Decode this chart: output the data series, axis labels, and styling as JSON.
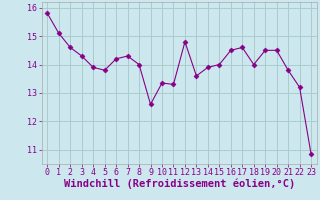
{
  "x": [
    0,
    1,
    2,
    3,
    4,
    5,
    6,
    7,
    8,
    9,
    10,
    11,
    12,
    13,
    14,
    15,
    16,
    17,
    18,
    19,
    20,
    21,
    22,
    23
  ],
  "y": [
    15.8,
    15.1,
    14.6,
    14.3,
    13.9,
    13.8,
    14.2,
    14.3,
    14.0,
    12.6,
    13.35,
    13.3,
    14.8,
    13.6,
    13.9,
    14.0,
    14.5,
    14.6,
    14.0,
    14.5,
    14.5,
    13.8,
    13.2,
    10.85
  ],
  "line_color": "#880088",
  "marker": "D",
  "marker_size": 2.5,
  "bg_color": "#cce8ee",
  "grid_color": "#aacccc",
  "xlabel": "Windchill (Refroidissement éolien,°C)",
  "xlabel_fontsize": 7.5,
  "tick_fontsize": 6.5,
  "ylim": [
    10.5,
    16.2
  ],
  "xlim": [
    -0.5,
    23.5
  ],
  "yticks": [
    11,
    12,
    13,
    14,
    15,
    16
  ],
  "xticks": [
    0,
    1,
    2,
    3,
    4,
    5,
    6,
    7,
    8,
    9,
    10,
    11,
    12,
    13,
    14,
    15,
    16,
    17,
    18,
    19,
    20,
    21,
    22,
    23
  ]
}
